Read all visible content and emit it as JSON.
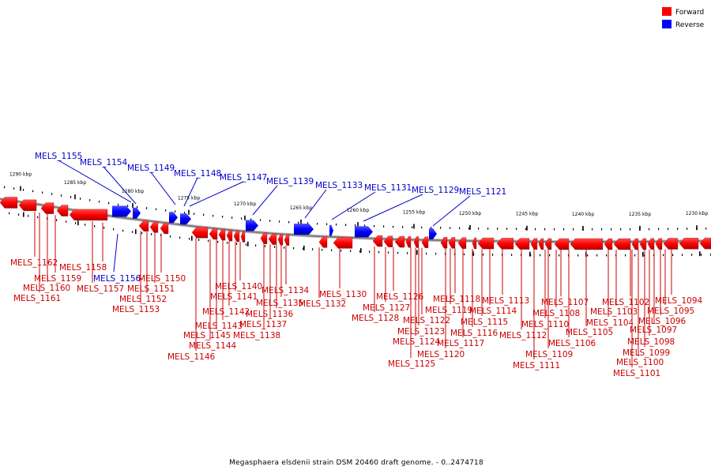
{
  "legend": {
    "items": [
      {
        "label": "Forward",
        "color": "#ff0000"
      },
      {
        "label": "Reverse",
        "color": "#0000ff"
      }
    ]
  },
  "caption": "Megasphaera elsdenii strain DSM 20460 draft genome. - 0..2474718",
  "colors": {
    "forward": "#ff0000",
    "reverse": "#0000ff",
    "forward_label": "#cc0000",
    "reverse_label": "#0000cc",
    "backbone": "#808080",
    "tick": "#000000"
  },
  "ticks": [
    "1290 kbp",
    "1285 kbp",
    "1280 kbp",
    "1275 kbp",
    "1270 kbp",
    "1265 kbp",
    "1260 kbp",
    "1255 kbp",
    "1250 kbp",
    "1245 kbp",
    "1240 kbp",
    "1235 kbp",
    "1230 kbp"
  ],
  "reverse_labels": [
    "MELS_1155",
    "MELS_1154",
    "MELS_1149",
    "MELS_1148",
    "MELS_1147",
    "MELS_1139",
    "MELS_1133",
    "MELS_1131",
    "MELS_1129",
    "MELS_1121",
    "MELS_1156"
  ],
  "forward_labels": [
    "MELS_1162",
    "MELS_1158",
    "MELS_1160",
    "MELS_1159",
    "MELS_1161",
    "MELS_1157",
    "MELS_1150",
    "MELS_1151",
    "MELS_1152",
    "MELS_1153",
    "MELS_1140",
    "MELS_1141",
    "MELS_1142",
    "MELS_1143",
    "MELS_1145",
    "MELS_1144",
    "MELS_1146",
    "MELS_1134",
    "MELS_1135",
    "MELS_1136",
    "MELS_1137",
    "MELS_1138",
    "MELS_1130",
    "MELS_1132",
    "MELS_1126",
    "MELS_1127",
    "MELS_1128",
    "MELS_1122",
    "MELS_1123",
    "MELS_1124",
    "MELS_1125",
    "MELS_1118",
    "MELS_1119",
    "MELS_1115",
    "MELS_1116",
    "MELS_1117",
    "MELS_1120",
    "MELS_1113",
    "MELS_1114",
    "MELS_1112",
    "MELS_1111",
    "MELS_1107",
    "MELS_1108",
    "MELS_1110",
    "MELS_1109",
    "MELS_1106",
    "MELS_1105",
    "MELS_1104",
    "MELS_1103",
    "MELS_1102",
    "MELS_1094",
    "MELS_1095",
    "MELS_1096",
    "MELS_1097",
    "MELS_1098",
    "MELS_1099",
    "MELS_1100",
    "MELS_1101"
  ]
}
